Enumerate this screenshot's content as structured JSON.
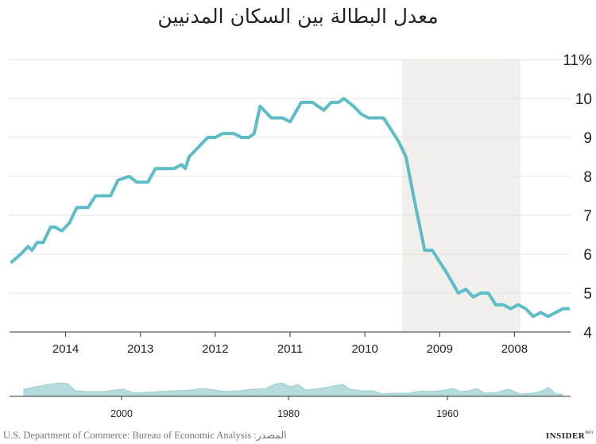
{
  "title": "معدل البطالة بين السكان المدنيين",
  "source": "U.S. Department of Commerce: Bureau of Economic Analysis :المصدر",
  "brand": {
    "name": "INSIDER",
    "suffix": "PRO"
  },
  "colors": {
    "line": "#5dbcc6",
    "recession": "#f1efeb",
    "grid": "#e6e6e6",
    "navigator": "#b6dbdd",
    "text": "#222222"
  },
  "chart_data": {
    "type": "line",
    "title": "معدل البطالة بين السكان المدنيين",
    "xlabel": "",
    "ylabel": "",
    "x_direction": "right-to-left",
    "x_range": [
      2007.25,
      2014.75
    ],
    "ylim": [
      4,
      11
    ],
    "y_ticks": [
      {
        "value": 11,
        "label": "11%"
      },
      {
        "value": 10,
        "label": "10"
      },
      {
        "value": 9,
        "label": "9"
      },
      {
        "value": 8,
        "label": "8"
      },
      {
        "value": 7,
        "label": "7"
      },
      {
        "value": 6,
        "label": "6"
      },
      {
        "value": 5,
        "label": "5"
      },
      {
        "value": 4,
        "label": "4"
      }
    ],
    "x_ticks": [
      {
        "value": 2014,
        "label": "2014"
      },
      {
        "value": 2013,
        "label": "2013"
      },
      {
        "value": 2012,
        "label": "2012"
      },
      {
        "value": 2011,
        "label": "2011"
      },
      {
        "value": 2010,
        "label": "2010"
      },
      {
        "value": 2009,
        "label": "2009"
      },
      {
        "value": 2008,
        "label": "2008"
      }
    ],
    "recession": {
      "start": 2007.92,
      "end": 2009.5
    },
    "series": [
      {
        "name": "معدل البطالة بين السكان المدنيين",
        "x": [
          2014.72,
          2014.6,
          2014.5,
          2014.45,
          2014.38,
          2014.3,
          2014.2,
          2014.15,
          2014.05,
          2013.95,
          2013.85,
          2013.7,
          2013.6,
          2013.4,
          2013.3,
          2013.15,
          2013.05,
          2012.9,
          2012.8,
          2012.7,
          2012.55,
          2012.45,
          2012.4,
          2012.35,
          2012.25,
          2012.1,
          2012.0,
          2011.9,
          2011.75,
          2011.65,
          2011.55,
          2011.48,
          2011.4,
          2011.25,
          2011.1,
          2011.0,
          2010.85,
          2010.7,
          2010.55,
          2010.45,
          2010.35,
          2010.28,
          2010.15,
          2010.05,
          2009.95,
          2009.75,
          2009.55,
          2009.45,
          2009.35,
          2009.2,
          2009.1,
          2009.0,
          2008.9,
          2008.75,
          2008.65,
          2008.55,
          2008.45,
          2008.35,
          2008.25,
          2008.15,
          2008.05,
          2007.95,
          2007.85,
          2007.75,
          2007.65,
          2007.55,
          2007.45,
          2007.35,
          2007.28
        ],
        "values": [
          5.8,
          6.0,
          6.2,
          6.1,
          6.3,
          6.3,
          6.7,
          6.7,
          6.6,
          6.8,
          7.2,
          7.2,
          7.5,
          7.5,
          7.9,
          8.0,
          7.85,
          7.85,
          8.2,
          8.2,
          8.2,
          8.3,
          8.2,
          8.5,
          8.7,
          9.0,
          9.0,
          9.1,
          9.1,
          9.0,
          9.0,
          9.1,
          9.8,
          9.5,
          9.5,
          9.4,
          9.9,
          9.9,
          9.7,
          9.9,
          9.9,
          10.0,
          9.8,
          9.6,
          9.5,
          9.5,
          8.9,
          8.5,
          7.5,
          6.1,
          6.1,
          5.8,
          5.5,
          5.0,
          5.1,
          4.9,
          5.0,
          5.0,
          4.7,
          4.7,
          4.6,
          4.7,
          4.6,
          4.4,
          4.5,
          4.4,
          4.5,
          4.6,
          4.6
        ]
      }
    ],
    "navigator": {
      "type": "area",
      "ticks": [
        {
          "value": 2000,
          "label": "2000"
        },
        {
          "value": 1980,
          "label": "1980"
        },
        {
          "value": 1960,
          "label": "1960"
        }
      ]
    }
  }
}
